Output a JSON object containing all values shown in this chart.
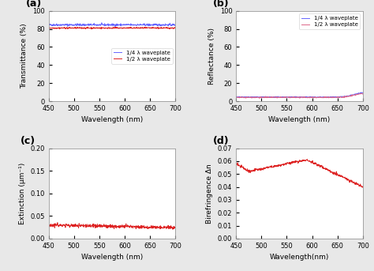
{
  "x_range": [
    450,
    700
  ],
  "panel_a": {
    "label": "(a)",
    "ylabel": "Transmittance (%)",
    "xlabel": "Wavelength (nm)",
    "ylim": [
      0,
      100
    ],
    "yticks": [
      0,
      20,
      40,
      60,
      80,
      100
    ],
    "blue_mean": 84.5,
    "blue_noise": 0.6,
    "red_mean": 81.0,
    "red_noise": 0.4,
    "blue_color": "#6666ff",
    "red_color": "#dd2222",
    "legend_labels": [
      "1/4 λ waveplate",
      "1/2 λ waveplate"
    ],
    "legend_loc": "center right"
  },
  "panel_b": {
    "label": "(b)",
    "ylabel": "Reflectance (%)",
    "xlabel": "Wavelength (nm)",
    "ylim": [
      0,
      100
    ],
    "yticks": [
      0,
      20,
      40,
      60,
      80,
      100
    ],
    "blue_mean": 4.5,
    "blue_noise": 0.3,
    "red_mean": 4.2,
    "red_noise": 0.3,
    "blue_color": "#6666ff",
    "red_color": "#dd6688",
    "legend_labels": [
      "1/4 λ waveplate",
      "1/2 λ waveplate"
    ],
    "legend_loc": "upper right"
  },
  "panel_c": {
    "label": "(c)",
    "ylabel": "Extinction (μm⁻¹)",
    "xlabel": "Wavelength (nm)",
    "ylim": [
      0,
      0.2
    ],
    "yticks": [
      0.0,
      0.05,
      0.1,
      0.15,
      0.2
    ],
    "red_mean": 0.03,
    "red_noise": 0.002,
    "red_color": "#dd2222"
  },
  "panel_d": {
    "label": "(d)",
    "ylabel": "Birefringence Δn",
    "xlabel": "Wavelength(nm)",
    "ylim": [
      0,
      0.07
    ],
    "yticks": [
      0.0,
      0.01,
      0.02,
      0.03,
      0.04,
      0.05,
      0.06,
      0.07
    ],
    "red_color": "#dd2222"
  },
  "background_color": "#e8e8e8",
  "plot_bg": "#ffffff"
}
